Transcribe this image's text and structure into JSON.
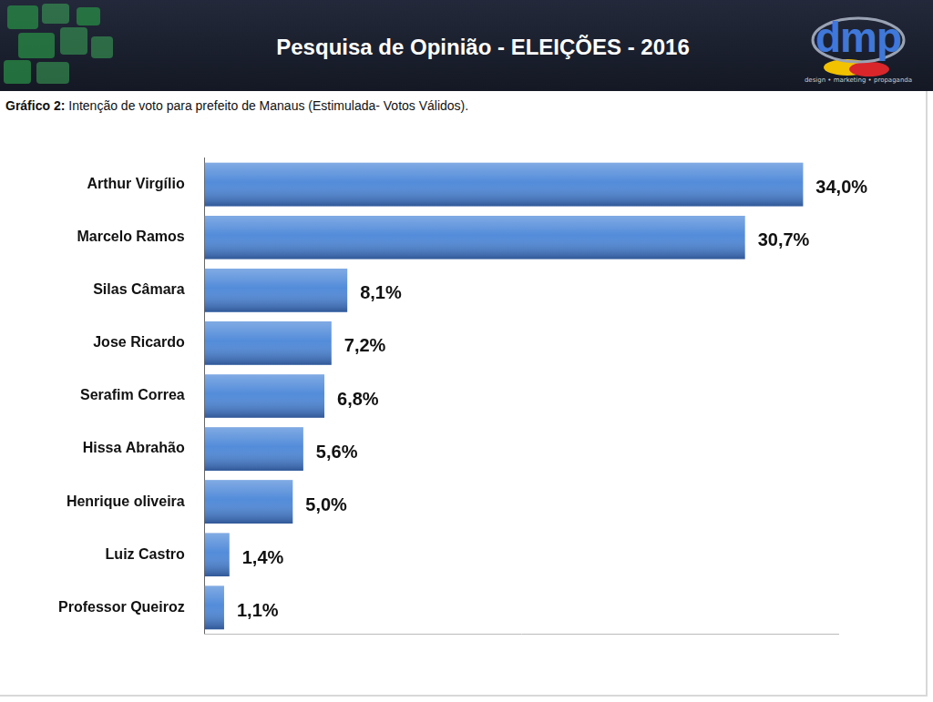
{
  "header": {
    "title": "Pesquisa de Opinião - ELEIÇÕES - 2016",
    "logo": "dmp",
    "logo_tagline": "design • marketing • propaganda"
  },
  "chart_data": {
    "type": "bar",
    "orientation": "horizontal",
    "title": "Gráfico 2: Intenção de voto para prefeito de Manaus (Estimulada- Votos Válidos).",
    "categories": [
      "Arthur Virgílio",
      "Marcelo Ramos",
      "Silas Câmara",
      "Jose Ricardo",
      "Serafim Correa",
      "Hissa Abrahão",
      "Henrique oliveira",
      "Luiz Castro",
      "Professor Queiroz"
    ],
    "values": [
      34.0,
      30.7,
      8.1,
      7.2,
      6.8,
      5.6,
      5.0,
      1.4,
      1.1
    ],
    "value_labels": [
      "34,0%",
      "30,7%",
      "8,1%",
      "7,2%",
      "6,8%",
      "5,6%",
      "5,0%",
      "1,4%",
      "1,1%"
    ],
    "color": "#4a86d8",
    "xlim": [
      0,
      36
    ],
    "data_labels": true,
    "tick_labels": "y",
    "grid": false
  }
}
